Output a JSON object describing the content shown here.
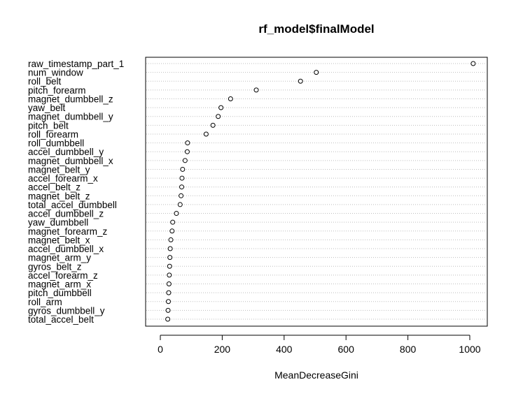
{
  "chart_data": {
    "type": "scatter",
    "title": "rf_model$finalModel",
    "xlabel": "MeanDecreaseGini",
    "ylabel": "",
    "xlim": [
      0,
      1000
    ],
    "xticks": [
      0,
      200,
      400,
      600,
      800,
      1000
    ],
    "grid": "horizontal-dotted",
    "categories": [
      "raw_timestamp_part_1",
      "num_window",
      "roll_belt",
      "pitch_forearm",
      "magnet_dumbbell_z",
      "yaw_belt",
      "magnet_dumbbell_y",
      "pitch_belt",
      "roll_forearm",
      "roll_dumbbell",
      "accel_dumbbell_y",
      "magnet_dumbbell_x",
      "magnet_belt_y",
      "accel_forearm_x",
      "accel_belt_z",
      "magnet_belt_z",
      "total_accel_dumbbell",
      "accel_dumbbell_z",
      "yaw_dumbbell",
      "magnet_forearm_z",
      "magnet_belt_x",
      "accel_dumbbell_x",
      "magnet_arm_y",
      "gyros_belt_z",
      "accel_forearm_z",
      "magnet_arm_x",
      "pitch_dumbbell",
      "roll_arm",
      "gyros_dumbbell_y",
      "total_accel_belt"
    ],
    "values": [
      1011,
      504,
      453,
      310,
      227,
      196,
      187,
      170,
      148,
      88,
      87,
      80,
      72,
      70,
      69,
      67,
      64,
      52,
      40,
      38,
      34,
      32,
      31,
      30,
      29,
      28,
      27,
      26,
      25,
      24
    ]
  }
}
